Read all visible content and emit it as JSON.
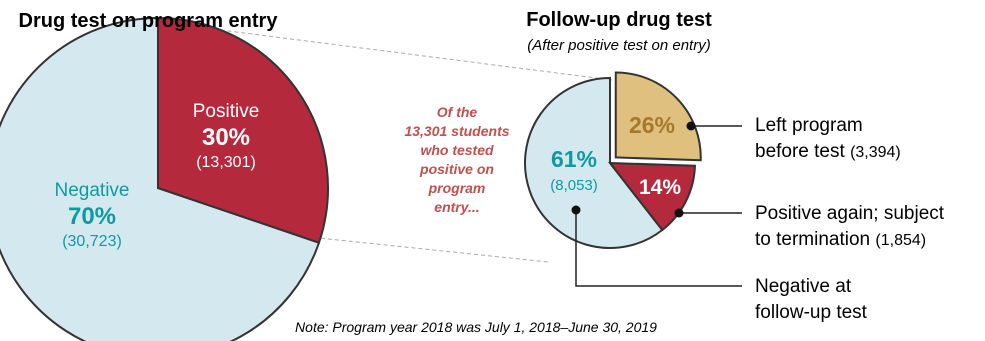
{
  "colors": {
    "negative_fill": "#d3e9ef",
    "positive_fill": "#b5293d",
    "left_fill": "#dfc07e",
    "negative_text": "#109aa0",
    "left_text": "#a6792a",
    "callout_text": "#c0504d",
    "stroke": "#333333"
  },
  "chart_data": [
    {
      "type": "pie",
      "title": "Drug test on program entry",
      "slices": [
        {
          "name": "Positive",
          "percent_label": "30%",
          "count_label": "(13,301)",
          "value": 13301
        },
        {
          "name": "Negative",
          "percent_label": "70%",
          "count_label": "(30,723)",
          "value": 30723
        }
      ]
    },
    {
      "type": "pie",
      "title": "Follow-up drug test",
      "subtitle": "(After positive test on entry)",
      "slices": [
        {
          "name": "Left program before test",
          "percent_label": "26%",
          "value": 3394,
          "legend_line1": "Left program",
          "legend_line2": "before test",
          "legend_count": "(3,394)"
        },
        {
          "name": "Positive again; subject to termination",
          "percent_label": "14%",
          "value": 1854,
          "legend_line1": "Positive again; subject",
          "legend_line2": "to termination",
          "legend_count": "(1,854)"
        },
        {
          "name": "Negative at follow-up test",
          "percent_label": "61%",
          "count_label": "(8,053)",
          "value": 8053,
          "legend_line1": "Negative at",
          "legend_line2": "follow-up test"
        }
      ]
    }
  ],
  "callout": {
    "lines": [
      "Of the",
      "13,301 students",
      "who tested",
      "positive on",
      "program",
      "entry..."
    ]
  },
  "note": "Note: Program year 2018 was July 1, 2018–June 30, 2019"
}
